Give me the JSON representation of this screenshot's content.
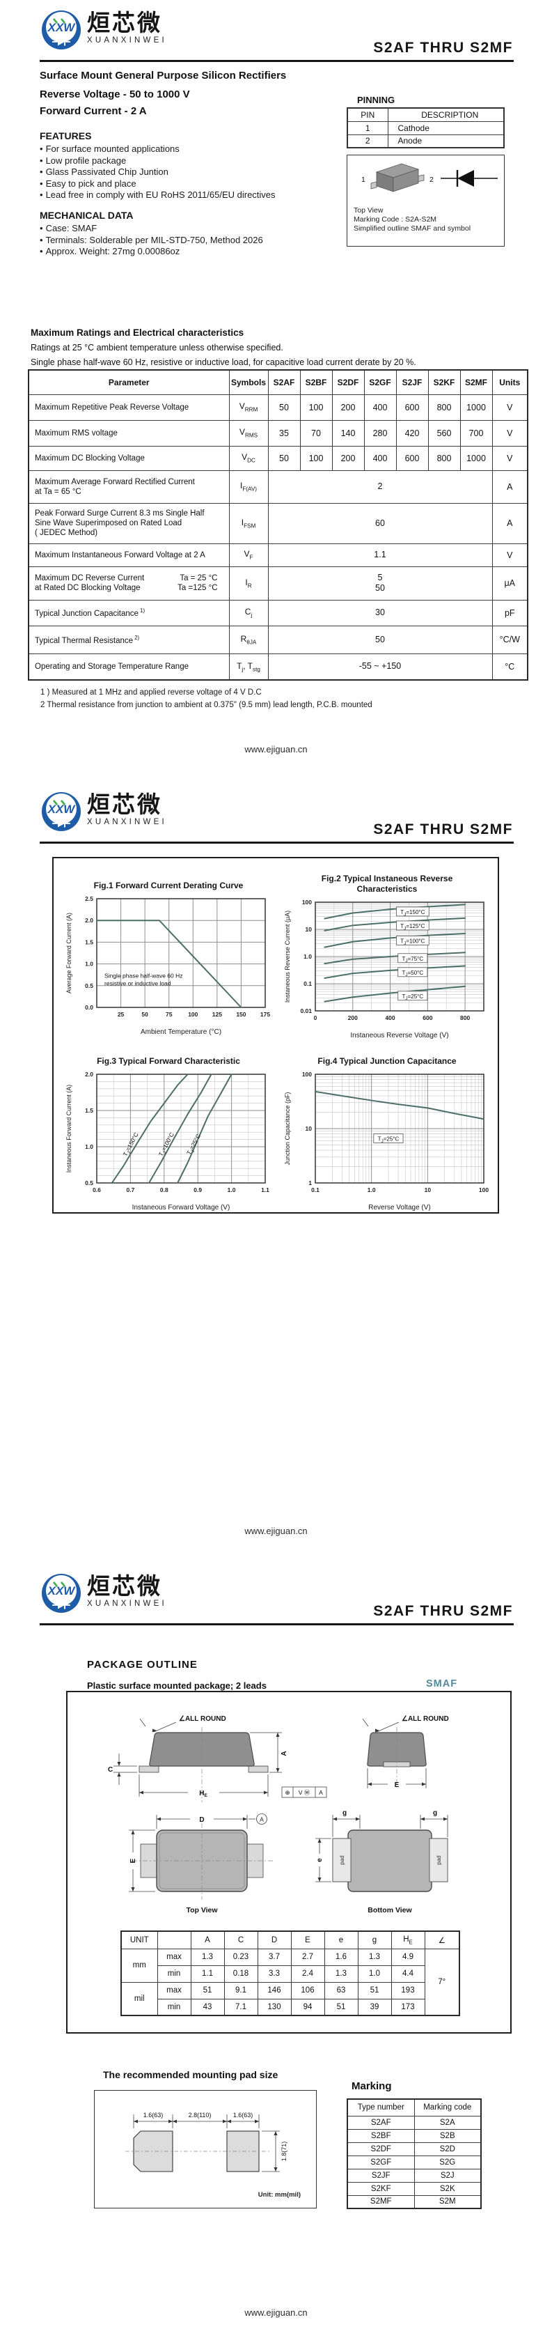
{
  "colors": {
    "logo_blue": "#1e5ca8",
    "logo_green": "#3fae4a",
    "accent_teal": "#53899b",
    "curve": "#4c6e66"
  },
  "header": {
    "logo_cn": "烜芯微",
    "logo_en": "XUANXINWEI",
    "logo_monogram": "XXW",
    "title": "S2AF THRU S2MF"
  },
  "footer_url": "www.ejiguan.cn",
  "page1": {
    "product_title": "Surface Mount General Purpose Silicon Rectifiers",
    "subtitle1": "Reverse Voltage - 50 to 1000 V",
    "subtitle2": "Forward Current - 2 A",
    "features_heading": "FEATURES",
    "features": [
      "For surface mounted applications",
      "Low profile package",
      "Glass Passivated Chip Juntion",
      "Easy to pick and place",
      "Lead free in comply with EU RoHS 2011/65/EU directives"
    ],
    "mechanical_heading": "MECHANICAL DATA",
    "mechanical": [
      "Case: SMAF",
      "Terminals: Solderable per MIL-STD-750, Method 2026",
      "Approx. Weight: 27mg  0.00086oz"
    ],
    "pinning": {
      "heading": "PINNING",
      "columns": [
        "PIN",
        "DESCRIPTION"
      ],
      "rows": [
        [
          "1",
          "Cathode"
        ],
        [
          "2",
          "Anode"
        ]
      ],
      "pin1": "1",
      "pin2": "2",
      "top_view": "Top View",
      "marking_code_line": "Marking Code :  S2A-S2M",
      "caption": "Simplified outline SMAF and symbol"
    },
    "ratings": {
      "heading": "Maximum Ratings and Electrical characteristics",
      "intro1": "Ratings at 25 °C ambient temperature unless otherwise specified.",
      "intro2": "Single phase half-wave 60 Hz, resistive or inductive load, for capacitive load current derate by 20 %.",
      "col_parameter": "Parameter",
      "col_symbols": "Symbols",
      "col_types": [
        "S2AF",
        "S2BF",
        "S2DF",
        "S2GF",
        "S2JF",
        "S2KF",
        "S2MF"
      ],
      "col_units": "Units",
      "rows": [
        {
          "param_lines": [
            {
              "l": "Maximum Repetitive Peak Reverse Voltage"
            }
          ],
          "sym": [
            {
              "t": "V"
            },
            {
              "t": "RRM",
              "sub": true
            }
          ],
          "values": [
            "50",
            "100",
            "200",
            "400",
            "600",
            "800",
            "1000"
          ],
          "unit": "V"
        },
        {
          "param_lines": [
            {
              "l": "Maximum RMS voltage"
            }
          ],
          "sym": [
            {
              "t": "V"
            },
            {
              "t": "RMS",
              "sub": true
            }
          ],
          "values": [
            "35",
            "70",
            "140",
            "280",
            "420",
            "560",
            "700"
          ],
          "unit": "V"
        },
        {
          "param_lines": [
            {
              "l": "Maximum DC Blocking Voltage"
            }
          ],
          "sym": [
            {
              "t": "V"
            },
            {
              "t": "DC",
              "sub": true
            }
          ],
          "values": [
            "50",
            "100",
            "200",
            "400",
            "600",
            "800",
            "1000"
          ],
          "unit": "V"
        },
        {
          "param_lines": [
            {
              "l": "Maximum Average Forward Rectified Current"
            },
            {
              "l": "at Ta = 65 °C"
            }
          ],
          "sym": [
            {
              "t": "I"
            },
            {
              "t": "F(AV)",
              "sub": true
            }
          ],
          "span": "2",
          "unit": "A"
        },
        {
          "param_lines": [
            {
              "l": "Peak Forward Surge Current 8.3 ms Single Half"
            },
            {
              "l": "Sine Wave Superimposed on Rated Load"
            },
            {
              "l": "( JEDEC Method)"
            }
          ],
          "sym": [
            {
              "t": "I"
            },
            {
              "t": "FSM",
              "sub": true
            }
          ],
          "span": "60",
          "unit": "A"
        },
        {
          "param_lines": [
            {
              "l": "Maximum Instantaneous Forward Voltage at 2 A"
            }
          ],
          "sym": [
            {
              "t": "V"
            },
            {
              "t": "F",
              "sub": true
            }
          ],
          "span": "1.1",
          "unit": "V"
        },
        {
          "param_lines": [
            {
              "l": "Maximum DC Reverse Current",
              "r": "Ta = 25 °C"
            },
            {
              "l": "at Rated DC Blocking Voltage",
              "r": "Ta =125 °C"
            }
          ],
          "sym": [
            {
              "t": "I"
            },
            {
              "t": "R",
              "sub": true
            }
          ],
          "span": "5\n50",
          "unit": "μA"
        },
        {
          "param_lines": [
            {
              "l": "Typical Junction Capacitance",
              "sup": "1)"
            }
          ],
          "sym": [
            {
              "t": "C"
            },
            {
              "t": "j",
              "sub": true
            }
          ],
          "span": "30",
          "unit": "pF"
        },
        {
          "param_lines": [
            {
              "l": "Typical Thermal Resistance",
              "sup": "2)"
            }
          ],
          "sym": [
            {
              "t": "R"
            },
            {
              "t": "θJA",
              "sub": true
            }
          ],
          "span": "50",
          "unit": "°C/W"
        },
        {
          "param_lines": [
            {
              "l": "Operating and Storage Temperature Range"
            }
          ],
          "sym": [
            {
              "t": "T"
            },
            {
              "t": "j",
              "sub": true
            },
            {
              "t": ", T"
            },
            {
              "t": "stg",
              "sub": true
            }
          ],
          "span": "-55 ~ +150",
          "unit": "°C"
        }
      ]
    },
    "notes": [
      "1 ) Measured at 1 MHz and applied reverse voltage of 4 V D.C",
      "2   Thermal resistance from junction to ambient at 0.375\" (9.5 mm) lead length, P.C.B. mounted"
    ]
  },
  "chart_data": [
    {
      "id": "fig1",
      "type": "line",
      "title": "Fig.1  Forward Current Derating Curve",
      "xlabel": "Ambient Temperature (°C)",
      "ylabel": "Average Forward Current (A)",
      "xscale": "linear",
      "yscale": "linear",
      "xlim": [
        0,
        175
      ],
      "ylim": [
        0,
        2.5
      ],
      "xticks": [
        25,
        50,
        75,
        100,
        125,
        150,
        175
      ],
      "xtick_labels": [
        "25",
        "50",
        "75",
        "100",
        "125",
        "150",
        "175"
      ],
      "yticks": [
        0,
        0.5,
        1.0,
        1.5,
        2.0,
        2.5
      ],
      "ytick_labels": [
        "0.0",
        "0.5",
        "1.0",
        "1.5",
        "2.0",
        "2.5"
      ],
      "grid": true,
      "series": [
        {
          "name": "derating",
          "points": [
            [
              0,
              2.0
            ],
            [
              65,
              2.0
            ],
            [
              150,
              0
            ]
          ]
        }
      ],
      "annotations": [
        {
          "lines": [
            "Single phase half-wave 60 Hz",
            "resistive or inductive load"
          ],
          "x": 8,
          "y": 0.68
        }
      ]
    },
    {
      "id": "fig2",
      "type": "line",
      "title": "Fig.2  Typical Instaneous Reverse",
      "title2": "Characteristics",
      "xlabel": "Instaneous Reverse Voltage (V)",
      "ylabel": "Instaneous Reverse Current (μA)",
      "xscale": "linear",
      "yscale": "log",
      "xlim": [
        0,
        900
      ],
      "ylim": [
        0.01,
        100
      ],
      "xminor": 100,
      "xticks": [
        0,
        200,
        400,
        600,
        800
      ],
      "xtick_labels": [
        "0",
        "200",
        "400",
        "600",
        "800"
      ],
      "yticks": [
        0.01,
        0.1,
        1,
        10,
        100
      ],
      "ytick_labels": [
        "0.01",
        "0.1",
        "1.0",
        "10",
        "100"
      ],
      "grid": true,
      "series": [
        {
          "name": "TJ=150°C",
          "points": [
            [
              50,
              25
            ],
            [
              200,
              40
            ],
            [
              400,
              55
            ],
            [
              600,
              68
            ],
            [
              800,
              82
            ]
          ],
          "label_at": [
            520,
            44
          ],
          "boxed": true
        },
        {
          "name": "TJ=125°C",
          "points": [
            [
              50,
              9
            ],
            [
              200,
              14
            ],
            [
              400,
              18
            ],
            [
              600,
              22
            ],
            [
              800,
              26
            ]
          ],
          "label_at": [
            520,
            13.5
          ],
          "boxed": true
        },
        {
          "name": "TJ=100°C",
          "points": [
            [
              50,
              2.2
            ],
            [
              200,
              3.5
            ],
            [
              400,
              4.8
            ],
            [
              600,
              6.0
            ],
            [
              800,
              7.0
            ]
          ],
          "label_at": [
            520,
            3.8
          ],
          "boxed": true
        },
        {
          "name": "TJ=75°C",
          "points": [
            [
              50,
              0.55
            ],
            [
              200,
              0.8
            ],
            [
              400,
              1.0
            ],
            [
              600,
              1.2
            ],
            [
              800,
              1.4
            ]
          ],
          "label_at": [
            520,
            0.85
          ],
          "boxed": true
        },
        {
          "name": "TJ=50°C",
          "points": [
            [
              50,
              0.16
            ],
            [
              200,
              0.24
            ],
            [
              400,
              0.31
            ],
            [
              600,
              0.38
            ],
            [
              800,
              0.45
            ]
          ],
          "label_at": [
            520,
            0.26
          ],
          "boxed": true
        },
        {
          "name": "TJ=25°C",
          "points": [
            [
              50,
              0.022
            ],
            [
              200,
              0.032
            ],
            [
              400,
              0.045
            ],
            [
              600,
              0.06
            ],
            [
              800,
              0.08
            ]
          ],
          "label_at": [
            520,
            0.035
          ],
          "boxed": true
        }
      ]
    },
    {
      "id": "fig3",
      "type": "line",
      "title": "Fig.3  Typical Forward Characteristic",
      "xlabel": "Instaneous Forward Voltage (V)",
      "ylabel": "Instaneous Forward Current (A)",
      "xscale": "linear",
      "yscale": "linear",
      "xlim": [
        0.6,
        1.1
      ],
      "ylim": [
        0.5,
        2.0
      ],
      "xminor": 0.05,
      "yminor": 0.1,
      "xticks": [
        0.6,
        0.7,
        0.8,
        0.9,
        1.0,
        1.1
      ],
      "xtick_labels": [
        "0.6",
        "0.7",
        "0.8",
        "0.9",
        "1.0",
        "1.1"
      ],
      "yticks": [
        0.5,
        1.0,
        1.5,
        2.0
      ],
      "ytick_labels": [
        "0.5",
        "1.0",
        "1.5",
        "2.0"
      ],
      "grid": true,
      "series": [
        {
          "name": "TJ=150°C",
          "points": [
            [
              0.645,
              0.5
            ],
            [
              0.68,
              0.74
            ],
            [
              0.72,
              1.05
            ],
            [
              0.76,
              1.35
            ],
            [
              0.8,
              1.6
            ],
            [
              0.84,
              1.85
            ],
            [
              0.87,
              2.0
            ]
          ],
          "label_at": [
            0.706,
            1.02
          ],
          "rotate": -62
        },
        {
          "name": "TJ=100°C",
          "points": [
            [
              0.755,
              0.5
            ],
            [
              0.79,
              0.78
            ],
            [
              0.83,
              1.12
            ],
            [
              0.87,
              1.45
            ],
            [
              0.91,
              1.75
            ],
            [
              0.94,
              2.0
            ]
          ],
          "label_at": [
            0.812,
            1.02
          ],
          "rotate": -62
        },
        {
          "name": "TJ=25°C",
          "points": [
            [
              0.84,
              0.5
            ],
            [
              0.87,
              0.78
            ],
            [
              0.9,
              1.1
            ],
            [
              0.93,
              1.42
            ],
            [
              0.97,
              1.75
            ],
            [
              1.0,
              2.0
            ]
          ],
          "label_at": [
            0.893,
            1.02
          ],
          "rotate": -62
        }
      ]
    },
    {
      "id": "fig4",
      "type": "line",
      "title": "Fig.4  Typical Junction Capacitance",
      "xlabel": "Reverse  Voltage (V)",
      "ylabel": "Junction Capacitance (pF)",
      "xscale": "log",
      "yscale": "log",
      "xlim": [
        0.1,
        100
      ],
      "ylim": [
        1,
        100
      ],
      "xticks": [
        0.1,
        1,
        10,
        100
      ],
      "xtick_labels": [
        "0.1",
        "1.0",
        "10",
        "100"
      ],
      "yticks": [
        1,
        10,
        100
      ],
      "ytick_labels": [
        "1",
        "10",
        "100"
      ],
      "grid": true,
      "series": [
        {
          "name": "TJ=25°C",
          "points": [
            [
              0.1,
              48
            ],
            [
              0.3,
              40
            ],
            [
              1,
              33
            ],
            [
              3,
              28
            ],
            [
              10,
              24
            ],
            [
              30,
              19
            ],
            [
              100,
              15
            ]
          ],
          "label_at": [
            2,
            6.5
          ],
          "boxed": true
        }
      ]
    }
  ],
  "page3": {
    "heading": "PACKAGE OUTLINE",
    "subheading": "Plastic surface mounted package; 2 leads",
    "package_name": "SMAF",
    "outline_labels": {
      "all_round": "∠ALL ROUND",
      "dim_A": "A",
      "dim_C": "C",
      "dim_HE": "HE",
      "dim_E": "E",
      "dim_D": "D",
      "dim_g": "g",
      "dim_e": "e",
      "pad": "pad",
      "datum_ref": "A",
      "datum_box": [
        "⊕",
        "V Ⓜ",
        "A"
      ],
      "top_view": "Top View",
      "bottom_view": "Bottom View"
    },
    "dim_table": {
      "col_unit": "UNIT",
      "cols": [
        "A",
        "C",
        "D",
        "E",
        "e",
        "g",
        "HE",
        "∠"
      ],
      "unit_groups": [
        {
          "unit": "mm",
          "rows": [
            {
              "k": "max",
              "v": [
                "1.3",
                "0.23",
                "3.7",
                "2.7",
                "1.6",
                "1.3",
                "4.9"
              ]
            },
            {
              "k": "min",
              "v": [
                "1.1",
                "0.18",
                "3.3",
                "2.4",
                "1.3",
                "1.0",
                "4.4"
              ]
            }
          ]
        },
        {
          "unit": "mil",
          "rows": [
            {
              "k": "max",
              "v": [
                "51",
                "9.1",
                "146",
                "106",
                "63",
                "51",
                "193"
              ]
            },
            {
              "k": "min",
              "v": [
                "43",
                "7.1",
                "130",
                "94",
                "51",
                "39",
                "173"
              ]
            }
          ]
        }
      ],
      "angle_value": "7°"
    },
    "pad_section": {
      "heading": "The recommended mounting pad size",
      "dim_left": "1.6(63)",
      "dim_mid": "2.8(110)",
      "dim_right": "1.6(63)",
      "dim_height": "1.8(71)",
      "unit_note": "Unit: mm(mil)"
    },
    "marking": {
      "heading": "Marking",
      "columns": [
        "Type number",
        "Marking code"
      ],
      "rows": [
        [
          "S2AF",
          "S2A"
        ],
        [
          "S2BF",
          "S2B"
        ],
        [
          "S2DF",
          "S2D"
        ],
        [
          "S2GF",
          "S2G"
        ],
        [
          "S2JF",
          "S2J"
        ],
        [
          "S2KF",
          "S2K"
        ],
        [
          "S2MF",
          "S2M"
        ]
      ]
    }
  }
}
